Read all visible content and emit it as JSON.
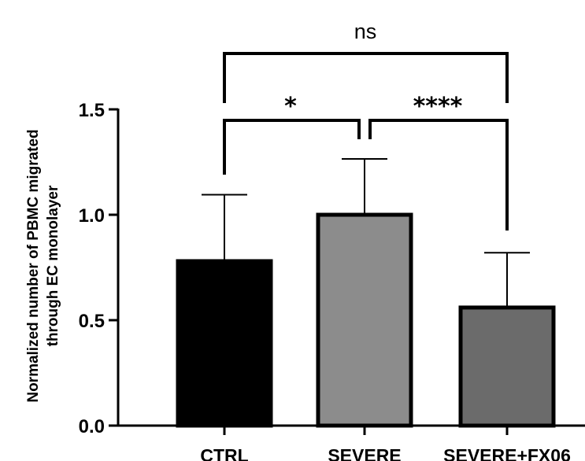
{
  "chart_data": {
    "type": "bar",
    "categories": [
      "CTRL",
      "SEVERE",
      "SEVERE+FX06"
    ],
    "values": [
      0.78,
      1.0,
      0.56
    ],
    "error_upper": [
      1.095,
      1.265,
      0.82
    ],
    "bar_colors": [
      "#000000",
      "#8c8c8c",
      "#6b6b6b"
    ],
    "title": "",
    "xlabel": "",
    "ylabel_lines": [
      "Normalized number of PBMC migrated",
      "through EC monolayer"
    ],
    "ylim": [
      0,
      1.5
    ],
    "yticks": [
      "0.0",
      "0.5",
      "1.0",
      "1.5"
    ],
    "grid": false,
    "significance": [
      {
        "from": 0,
        "to": 1,
        "label": "*"
      },
      {
        "from": 1,
        "to": 2,
        "label": "****"
      },
      {
        "from": 0,
        "to": 2,
        "label": "ns"
      }
    ]
  }
}
